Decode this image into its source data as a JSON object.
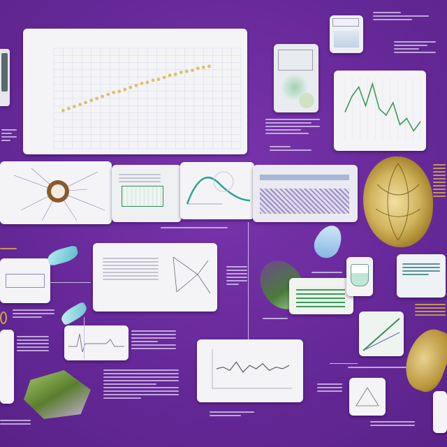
{
  "main_chart": {
    "title": "",
    "points": [
      [
        0.05,
        0.38
      ],
      [
        0.08,
        0.4
      ],
      [
        0.11,
        0.42
      ],
      [
        0.14,
        0.44
      ],
      [
        0.17,
        0.46
      ],
      [
        0.2,
        0.48
      ],
      [
        0.23,
        0.5
      ],
      [
        0.26,
        0.52
      ],
      [
        0.29,
        0.54
      ],
      [
        0.32,
        0.56
      ],
      [
        0.35,
        0.57
      ],
      [
        0.38,
        0.59
      ],
      [
        0.41,
        0.61
      ],
      [
        0.44,
        0.63
      ],
      [
        0.47,
        0.65
      ],
      [
        0.5,
        0.66
      ],
      [
        0.53,
        0.68
      ],
      [
        0.56,
        0.69
      ],
      [
        0.59,
        0.71
      ],
      [
        0.62,
        0.73
      ],
      [
        0.65,
        0.74
      ],
      [
        0.68,
        0.76
      ],
      [
        0.71,
        0.77
      ],
      [
        0.74,
        0.78
      ],
      [
        0.77,
        0.8
      ],
      [
        0.8,
        0.81
      ],
      [
        0.83,
        0.82
      ]
    ],
    "point_color": "#d8c26a"
  },
  "small_chart": {
    "line_color": "#3a9a5a",
    "values": [
      0.45,
      0.7,
      0.85,
      0.55,
      0.9,
      0.5,
      0.4,
      0.6,
      0.25,
      0.35,
      0.15,
      0.3
    ]
  },
  "bottom_chart": {
    "line_color": "#5a5a6a",
    "values": [
      0.5,
      0.55,
      0.45,
      0.7,
      0.4,
      0.6,
      0.5,
      0.65,
      0.45,
      0.55,
      0.5,
      0.6
    ]
  },
  "colors": {
    "background": "#6a2a9c",
    "card": "#f4f4f7",
    "accent_gold": "#d9b44a",
    "accent_teal": "#3aa39a"
  }
}
